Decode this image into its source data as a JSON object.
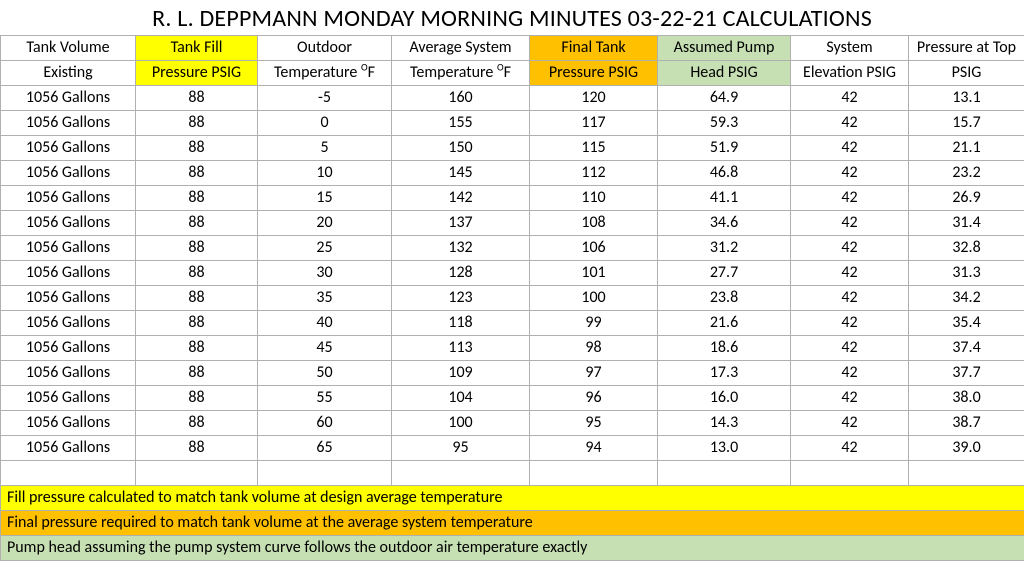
{
  "title": "R. L. DEPPMANN MONDAY MORNING MINUTES 03-22-21 CALCULATIONS",
  "columns": [
    {
      "l1": "Tank Volume",
      "l2": "Existing",
      "class": ""
    },
    {
      "l1": "Tank Fill",
      "l2": "Pressure PSIG",
      "class": "hi-yellow"
    },
    {
      "l1": "Outdoor",
      "l2_pre": "Temperature ",
      "sup": "O",
      "l2_post": "F",
      "class": ""
    },
    {
      "l1": "Average System",
      "l2_pre": "Temperature ",
      "sup": "O",
      "l2_post": "F",
      "class": ""
    },
    {
      "l1": "Final Tank",
      "l2": "Pressure PSIG",
      "class": "hi-orange"
    },
    {
      "l1": "Assumed Pump",
      "l2": "Head PSIG",
      "class": "hi-green"
    },
    {
      "l1": "System",
      "l2": "Elevation PSIG",
      "class": ""
    },
    {
      "l1": "Pressure at Top",
      "l2": "PSIG",
      "class": ""
    }
  ],
  "rows": [
    [
      "1056 Gallons",
      "88",
      "-5",
      "160",
      "120",
      "64.9",
      "42",
      "13.1"
    ],
    [
      "1056 Gallons",
      "88",
      "0",
      "155",
      "117",
      "59.3",
      "42",
      "15.7"
    ],
    [
      "1056 Gallons",
      "88",
      "5",
      "150",
      "115",
      "51.9",
      "42",
      "21.1"
    ],
    [
      "1056 Gallons",
      "88",
      "10",
      "145",
      "112",
      "46.8",
      "42",
      "23.2"
    ],
    [
      "1056 Gallons",
      "88",
      "15",
      "142",
      "110",
      "41.1",
      "42",
      "26.9"
    ],
    [
      "1056 Gallons",
      "88",
      "20",
      "137",
      "108",
      "34.6",
      "42",
      "31.4"
    ],
    [
      "1056 Gallons",
      "88",
      "25",
      "132",
      "106",
      "31.2",
      "42",
      "32.8"
    ],
    [
      "1056 Gallons",
      "88",
      "30",
      "128",
      "101",
      "27.7",
      "42",
      "31.3"
    ],
    [
      "1056 Gallons",
      "88",
      "35",
      "123",
      "100",
      "23.8",
      "42",
      "34.2"
    ],
    [
      "1056 Gallons",
      "88",
      "40",
      "118",
      "99",
      "21.6",
      "42",
      "35.4"
    ],
    [
      "1056 Gallons",
      "88",
      "45",
      "113",
      "98",
      "18.6",
      "42",
      "37.4"
    ],
    [
      "1056 Gallons",
      "88",
      "50",
      "109",
      "97",
      "17.3",
      "42",
      "37.7"
    ],
    [
      "1056 Gallons",
      "88",
      "55",
      "104",
      "96",
      "16.0",
      "42",
      "38.0"
    ],
    [
      "1056 Gallons",
      "88",
      "60",
      "100",
      "95",
      "14.3",
      "42",
      "38.7"
    ],
    [
      "1056 Gallons",
      "88",
      "65",
      "95",
      "94",
      "13.0",
      "42",
      "39.0"
    ]
  ],
  "notes": [
    {
      "text": "Fill pressure calculated to match tank volume at design average temperature",
      "cls": "yellow"
    },
    {
      "text": "Final pressure required to match tank volume at the average system temperature",
      "cls": "orange"
    },
    {
      "text": "Pump head assuming the pump system curve follows the outdoor air temperature exactly",
      "cls": "green"
    }
  ],
  "colors": {
    "yellow": "#ffff00",
    "orange": "#ffc000",
    "green": "#c6e0b4",
    "border": "#b0b0b0"
  }
}
